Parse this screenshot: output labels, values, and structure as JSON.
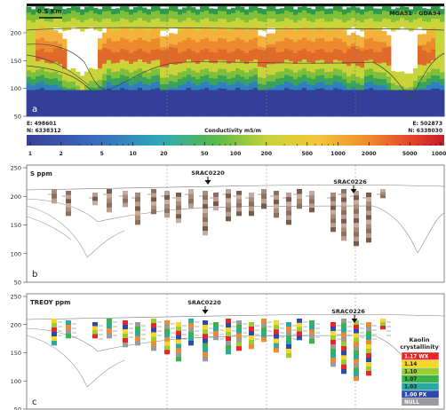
{
  "figure": {
    "panel_a": {
      "label": "a",
      "scale_bar": "0.5 Km",
      "projection": "MGA51 - GDA94",
      "y_ticks": [
        "200",
        "150",
        "100",
        "50"
      ],
      "coord_left": [
        "E: 498601",
        "N: 6338312"
      ],
      "coord_right": [
        "E: 502873",
        "N: 6338030"
      ],
      "colorbar_title": "Conductivity mS/m",
      "colorbar_ticks": [
        "1",
        "2",
        "5",
        "10",
        "20",
        "50",
        "100",
        "200",
        "500",
        "1000",
        "2000",
        "5000",
        "10000"
      ]
    },
    "panel_b": {
      "label": "b",
      "title": "S ppm",
      "y_ticks": [
        "250",
        "200",
        "150",
        "100",
        "50"
      ],
      "hole_1": "SRAC0220",
      "hole_2": "SRAC0226"
    },
    "panel_c": {
      "label": "c",
      "title": "TREOY ppm",
      "y_ticks": [
        "250",
        "200",
        "150",
        "100",
        "50"
      ],
      "hole_1": "SRAC0220",
      "hole_2": "SRAC0226",
      "legend_title_1": "Kaolin",
      "legend_title_2": "crystallinity",
      "legend_items": [
        {
          "label": "1.17 WX",
          "color": "#e8262a"
        },
        {
          "label": "1.14",
          "color": "#f6d72a"
        },
        {
          "label": "1.10",
          "color": "#9acd32"
        },
        {
          "label": "1.07",
          "color": "#3bb34a"
        },
        {
          "label": "1.03",
          "color": "#2aa9a0"
        },
        {
          "label": "1.00 PX",
          "color": "#2d4aa8"
        },
        {
          "label": "NULL",
          "color": "#9a9a9a"
        }
      ]
    }
  }
}
